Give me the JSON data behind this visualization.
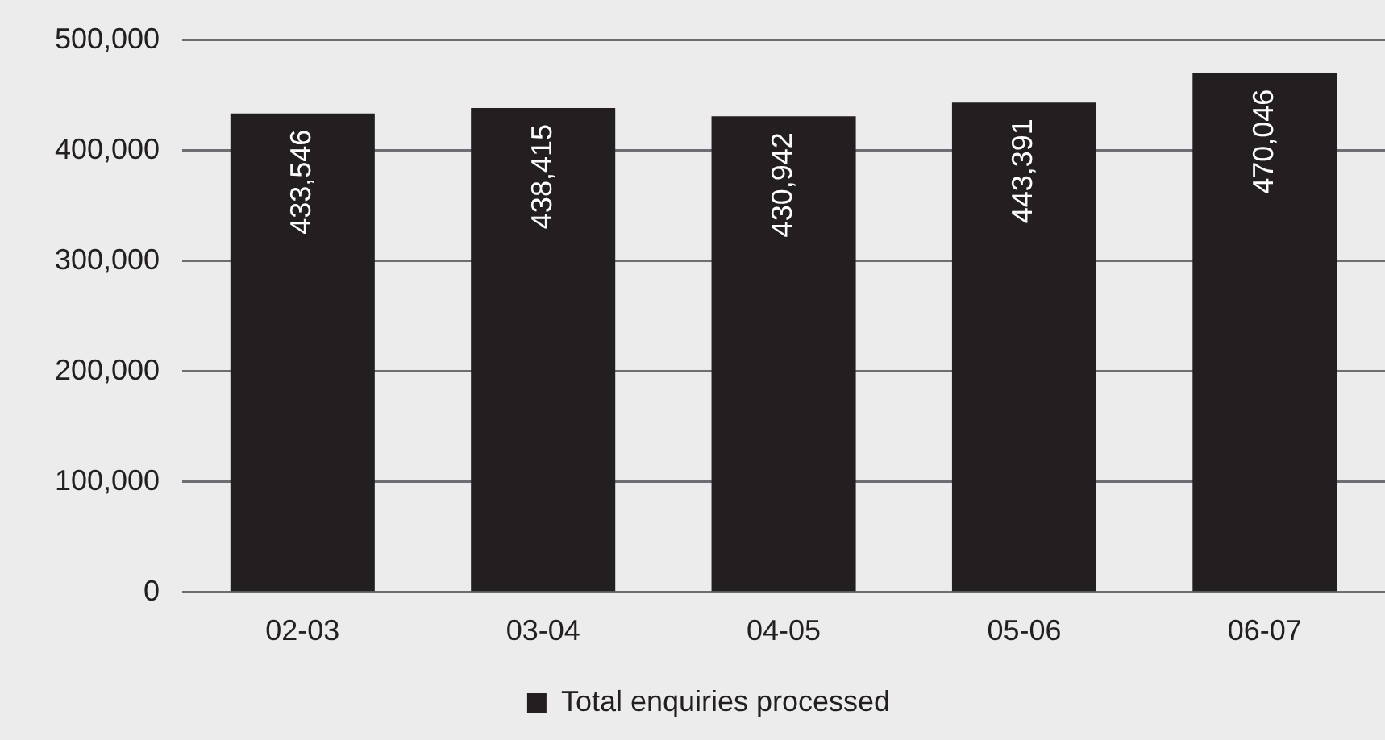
{
  "chart_data": {
    "type": "bar",
    "categories": [
      "02-03",
      "03-04",
      "04-05",
      "05-06",
      "06-07"
    ],
    "series": [
      {
        "name": "Total enquiries processed",
        "color": "#231f20",
        "values": [
          433546,
          438415,
          430942,
          443391,
          470046
        ],
        "value_labels": [
          "433,546",
          "438,415",
          "430,942",
          "443,391",
          "470,046"
        ]
      }
    ],
    "ylim": [
      0,
      500000
    ],
    "yticks": [
      {
        "value": 0,
        "label": "0"
      },
      {
        "value": 100000,
        "label": "100,000"
      },
      {
        "value": 200000,
        "label": "200,000"
      },
      {
        "value": 300000,
        "label": "300,000"
      },
      {
        "value": 400000,
        "label": "400,000"
      },
      {
        "value": 500000,
        "label": "500,000"
      }
    ],
    "grid": "y",
    "legend": "bottom"
  }
}
